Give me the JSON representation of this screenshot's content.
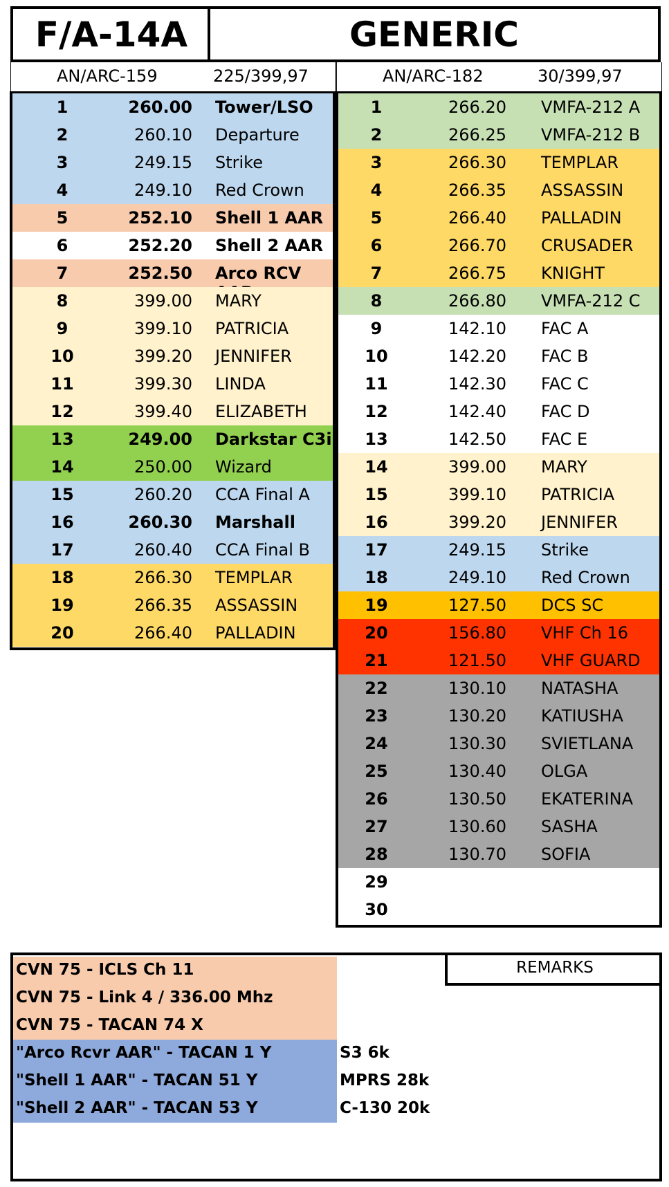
{
  "header": {
    "left_title": "F/A-14A",
    "right_title": "GENERIC"
  },
  "left_radio": {
    "name": "AN/ARC-159",
    "range": "225/399,97"
  },
  "right_radio": {
    "name": "AN/ARC-182",
    "range": "30/399,97"
  },
  "left_presets": [
    {
      "ch": "1",
      "freq": "260.00",
      "name": "Tower/LSO",
      "bg": "#BDD7EE",
      "bold": true
    },
    {
      "ch": "2",
      "freq": "260.10",
      "name": "Departure",
      "bg": "#BDD7EE",
      "bold": false
    },
    {
      "ch": "3",
      "freq": "249.15",
      "name": "Strike",
      "bg": "#BDD7EE",
      "bold": false
    },
    {
      "ch": "4",
      "freq": "249.10",
      "name": "Red Crown",
      "bg": "#BDD7EE",
      "bold": false
    },
    {
      "ch": "5",
      "freq": "252.10",
      "name": "Shell 1 AAR",
      "bg": "#F8CBAD",
      "bold": true
    },
    {
      "ch": "6",
      "freq": "252.20",
      "name": "Shell 2 AAR",
      "bg": "#FFFFFF",
      "bold": true
    },
    {
      "ch": "7",
      "freq": "252.50",
      "name": "Arco RCV AAR",
      "bg": "#F8CBAD",
      "bold": true
    },
    {
      "ch": "8",
      "freq": "399.00",
      "name": "MARY",
      "bg": "#FFF2CC",
      "bold": false
    },
    {
      "ch": "9",
      "freq": "399.10",
      "name": "PATRICIA",
      "bg": "#FFF2CC",
      "bold": false
    },
    {
      "ch": "10",
      "freq": "399.20",
      "name": "JENNIFER",
      "bg": "#FFF2CC",
      "bold": false
    },
    {
      "ch": "11",
      "freq": "399.30",
      "name": "LINDA",
      "bg": "#FFF2CC",
      "bold": false
    },
    {
      "ch": "12",
      "freq": "399.40",
      "name": "ELIZABETH",
      "bg": "#FFF2CC",
      "bold": false
    },
    {
      "ch": "13",
      "freq": "249.00",
      "name": "Darkstar C3i",
      "bg": "#92D050",
      "bold": true
    },
    {
      "ch": "14",
      "freq": "250.00",
      "name": "Wizard",
      "bg": "#92D050",
      "bold": false
    },
    {
      "ch": "15",
      "freq": "260.20",
      "name": "CCA Final A",
      "bg": "#BDD7EE",
      "bold": false
    },
    {
      "ch": "16",
      "freq": "260.30",
      "name": "Marshall",
      "bg": "#BDD7EE",
      "bold": true
    },
    {
      "ch": "17",
      "freq": "260.40",
      "name": "CCA Final B",
      "bg": "#BDD7EE",
      "bold": false
    },
    {
      "ch": "18",
      "freq": "266.30",
      "name": "TEMPLAR",
      "bg": "#FFD966",
      "bold": false
    },
    {
      "ch": "19",
      "freq": "266.35",
      "name": "ASSASSIN",
      "bg": "#FFD966",
      "bold": false
    },
    {
      "ch": "20",
      "freq": "266.40",
      "name": "PALLADIN",
      "bg": "#FFD966",
      "bold": false
    }
  ],
  "right_presets": [
    {
      "ch": "1",
      "freq": "266.20",
      "name": "VMFA-212 A",
      "bg": "#C6E0B4"
    },
    {
      "ch": "2",
      "freq": "266.25",
      "name": "VMFA-212 B",
      "bg": "#C6E0B4"
    },
    {
      "ch": "3",
      "freq": "266.30",
      "name": "TEMPLAR",
      "bg": "#FFD966"
    },
    {
      "ch": "4",
      "freq": "266.35",
      "name": "ASSASSIN",
      "bg": "#FFD966"
    },
    {
      "ch": "5",
      "freq": "266.40",
      "name": "PALLADIN",
      "bg": "#FFD966"
    },
    {
      "ch": "6",
      "freq": "266.70",
      "name": "CRUSADER",
      "bg": "#FFD966"
    },
    {
      "ch": "7",
      "freq": "266.75",
      "name": "KNIGHT",
      "bg": "#FFD966"
    },
    {
      "ch": "8",
      "freq": "266.80",
      "name": "VMFA-212 C",
      "bg": "#C6E0B4"
    },
    {
      "ch": "9",
      "freq": "142.10",
      "name": "FAC A",
      "bg": "#FFFFFF"
    },
    {
      "ch": "10",
      "freq": "142.20",
      "name": "FAC B",
      "bg": "#FFFFFF"
    },
    {
      "ch": "11",
      "freq": "142.30",
      "name": "FAC C",
      "bg": "#FFFFFF"
    },
    {
      "ch": "12",
      "freq": "142.40",
      "name": "FAC D",
      "bg": "#FFFFFF"
    },
    {
      "ch": "13",
      "freq": "142.50",
      "name": "FAC E",
      "bg": "#FFFFFF"
    },
    {
      "ch": "14",
      "freq": "399.00",
      "name": "MARY",
      "bg": "#FFF2CC"
    },
    {
      "ch": "15",
      "freq": "399.10",
      "name": "PATRICIA",
      "bg": "#FFF2CC"
    },
    {
      "ch": "16",
      "freq": "399.20",
      "name": "JENNIFER",
      "bg": "#FFF2CC"
    },
    {
      "ch": "17",
      "freq": "249.15",
      "name": "Strike",
      "bg": "#BDD7EE"
    },
    {
      "ch": "18",
      "freq": "249.10",
      "name": "Red Crown",
      "bg": "#BDD7EE"
    },
    {
      "ch": "19",
      "freq": "127.50",
      "name": "DCS SC",
      "bg": "#FFC000"
    },
    {
      "ch": "20",
      "freq": "156.80",
      "name": "VHF Ch 16",
      "bg": "#FF3300"
    },
    {
      "ch": "21",
      "freq": "121.50",
      "name": "VHF GUARD",
      "bg": "#FF3300"
    },
    {
      "ch": "22",
      "freq": "130.10",
      "name": "NATASHA",
      "bg": "#A6A6A6"
    },
    {
      "ch": "23",
      "freq": "130.20",
      "name": "KATIUSHA",
      "bg": "#A6A6A6"
    },
    {
      "ch": "24",
      "freq": "130.30",
      "name": "SVIETLANA",
      "bg": "#A6A6A6"
    },
    {
      "ch": "25",
      "freq": "130.40",
      "name": "OLGA",
      "bg": "#A6A6A6"
    },
    {
      "ch": "26",
      "freq": "130.50",
      "name": "EKATERINA",
      "bg": "#A6A6A6"
    },
    {
      "ch": "27",
      "freq": "130.60",
      "name": "SASHA",
      "bg": "#A6A6A6"
    },
    {
      "ch": "28",
      "freq": "130.70",
      "name": "SOFIA",
      "bg": "#A6A6A6"
    },
    {
      "ch": "29",
      "freq": "",
      "name": "",
      "bg": "#FFFFFF"
    },
    {
      "ch": "30",
      "freq": "",
      "name": "",
      "bg": "#FFFFFF"
    }
  ],
  "notes": [
    {
      "text": "CVN 75 - ICLS Ch 11",
      "bg": "#F8CBAD"
    },
    {
      "text": "CVN 75 - Link 4 /  336.00 Mhz",
      "bg": "#F8CBAD"
    },
    {
      "text": "CVN 75 - TACAN 74 X",
      "bg": "#F8CBAD"
    },
    {
      "text": "\"Arco Rcvr AAR\" - TACAN 1 Y",
      "bg": "#8EA9DB"
    },
    {
      "text": "\"Shell 1 AAR\" - TACAN 51 Y",
      "bg": "#8EA9DB"
    },
    {
      "text": "\"Shell 2 AAR\" - TACAN 53 Y",
      "bg": "#8EA9DB"
    }
  ],
  "remarks": {
    "title": "REMARKS",
    "lines": [
      "S3 6k",
      "MPRS 28k",
      "C-130 20k"
    ]
  }
}
